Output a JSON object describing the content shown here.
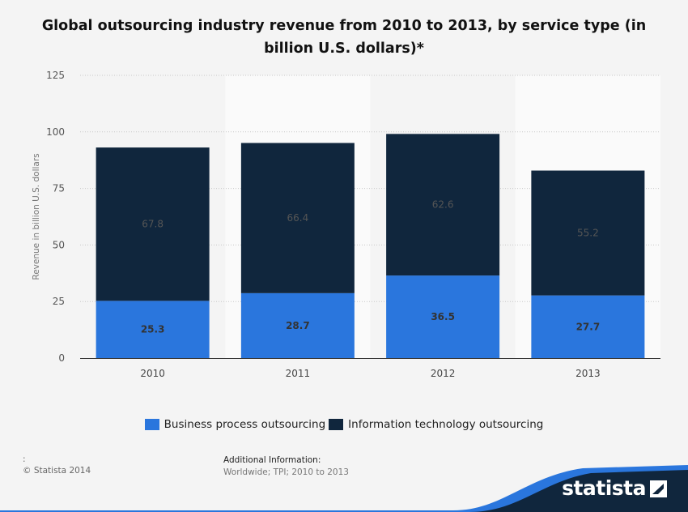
{
  "title": "Global outsourcing industry revenue from 2010 to 2013, by service type (in billion U.S. dollars)*",
  "chart_data": {
    "type": "bar",
    "stacked": true,
    "categories": [
      "2010",
      "2011",
      "2012",
      "2013"
    ],
    "series": [
      {
        "name": "Business process outsourcing",
        "color": "#2a76dd",
        "values": [
          25.3,
          28.7,
          36.5,
          27.7
        ],
        "labels": [
          "25.3",
          "28.7",
          "36.5",
          "27.7"
        ]
      },
      {
        "name": "Information technology outsourcing",
        "color": "#10263d",
        "values": [
          67.8,
          66.4,
          62.6,
          55.2
        ],
        "labels": [
          "67.8",
          "66.4",
          "62.6",
          "55.2"
        ]
      }
    ],
    "ylabel": "Revenue in billion U.S. dollars",
    "ylim": [
      0,
      125
    ],
    "yticks": [
      0,
      25,
      50,
      75,
      100,
      125
    ],
    "ytick_labels": [
      "0",
      "25",
      "50",
      "75",
      "100",
      "125"
    ],
    "grid": true,
    "legend_position": "bottom"
  },
  "footer": {
    "source_colon": ":",
    "copyright": "© Statista 2014",
    "additional_heading": "Additional Information:",
    "additional_text": "Worldwide; TPI; 2010 to 2013"
  },
  "brand": {
    "name": "statista"
  }
}
